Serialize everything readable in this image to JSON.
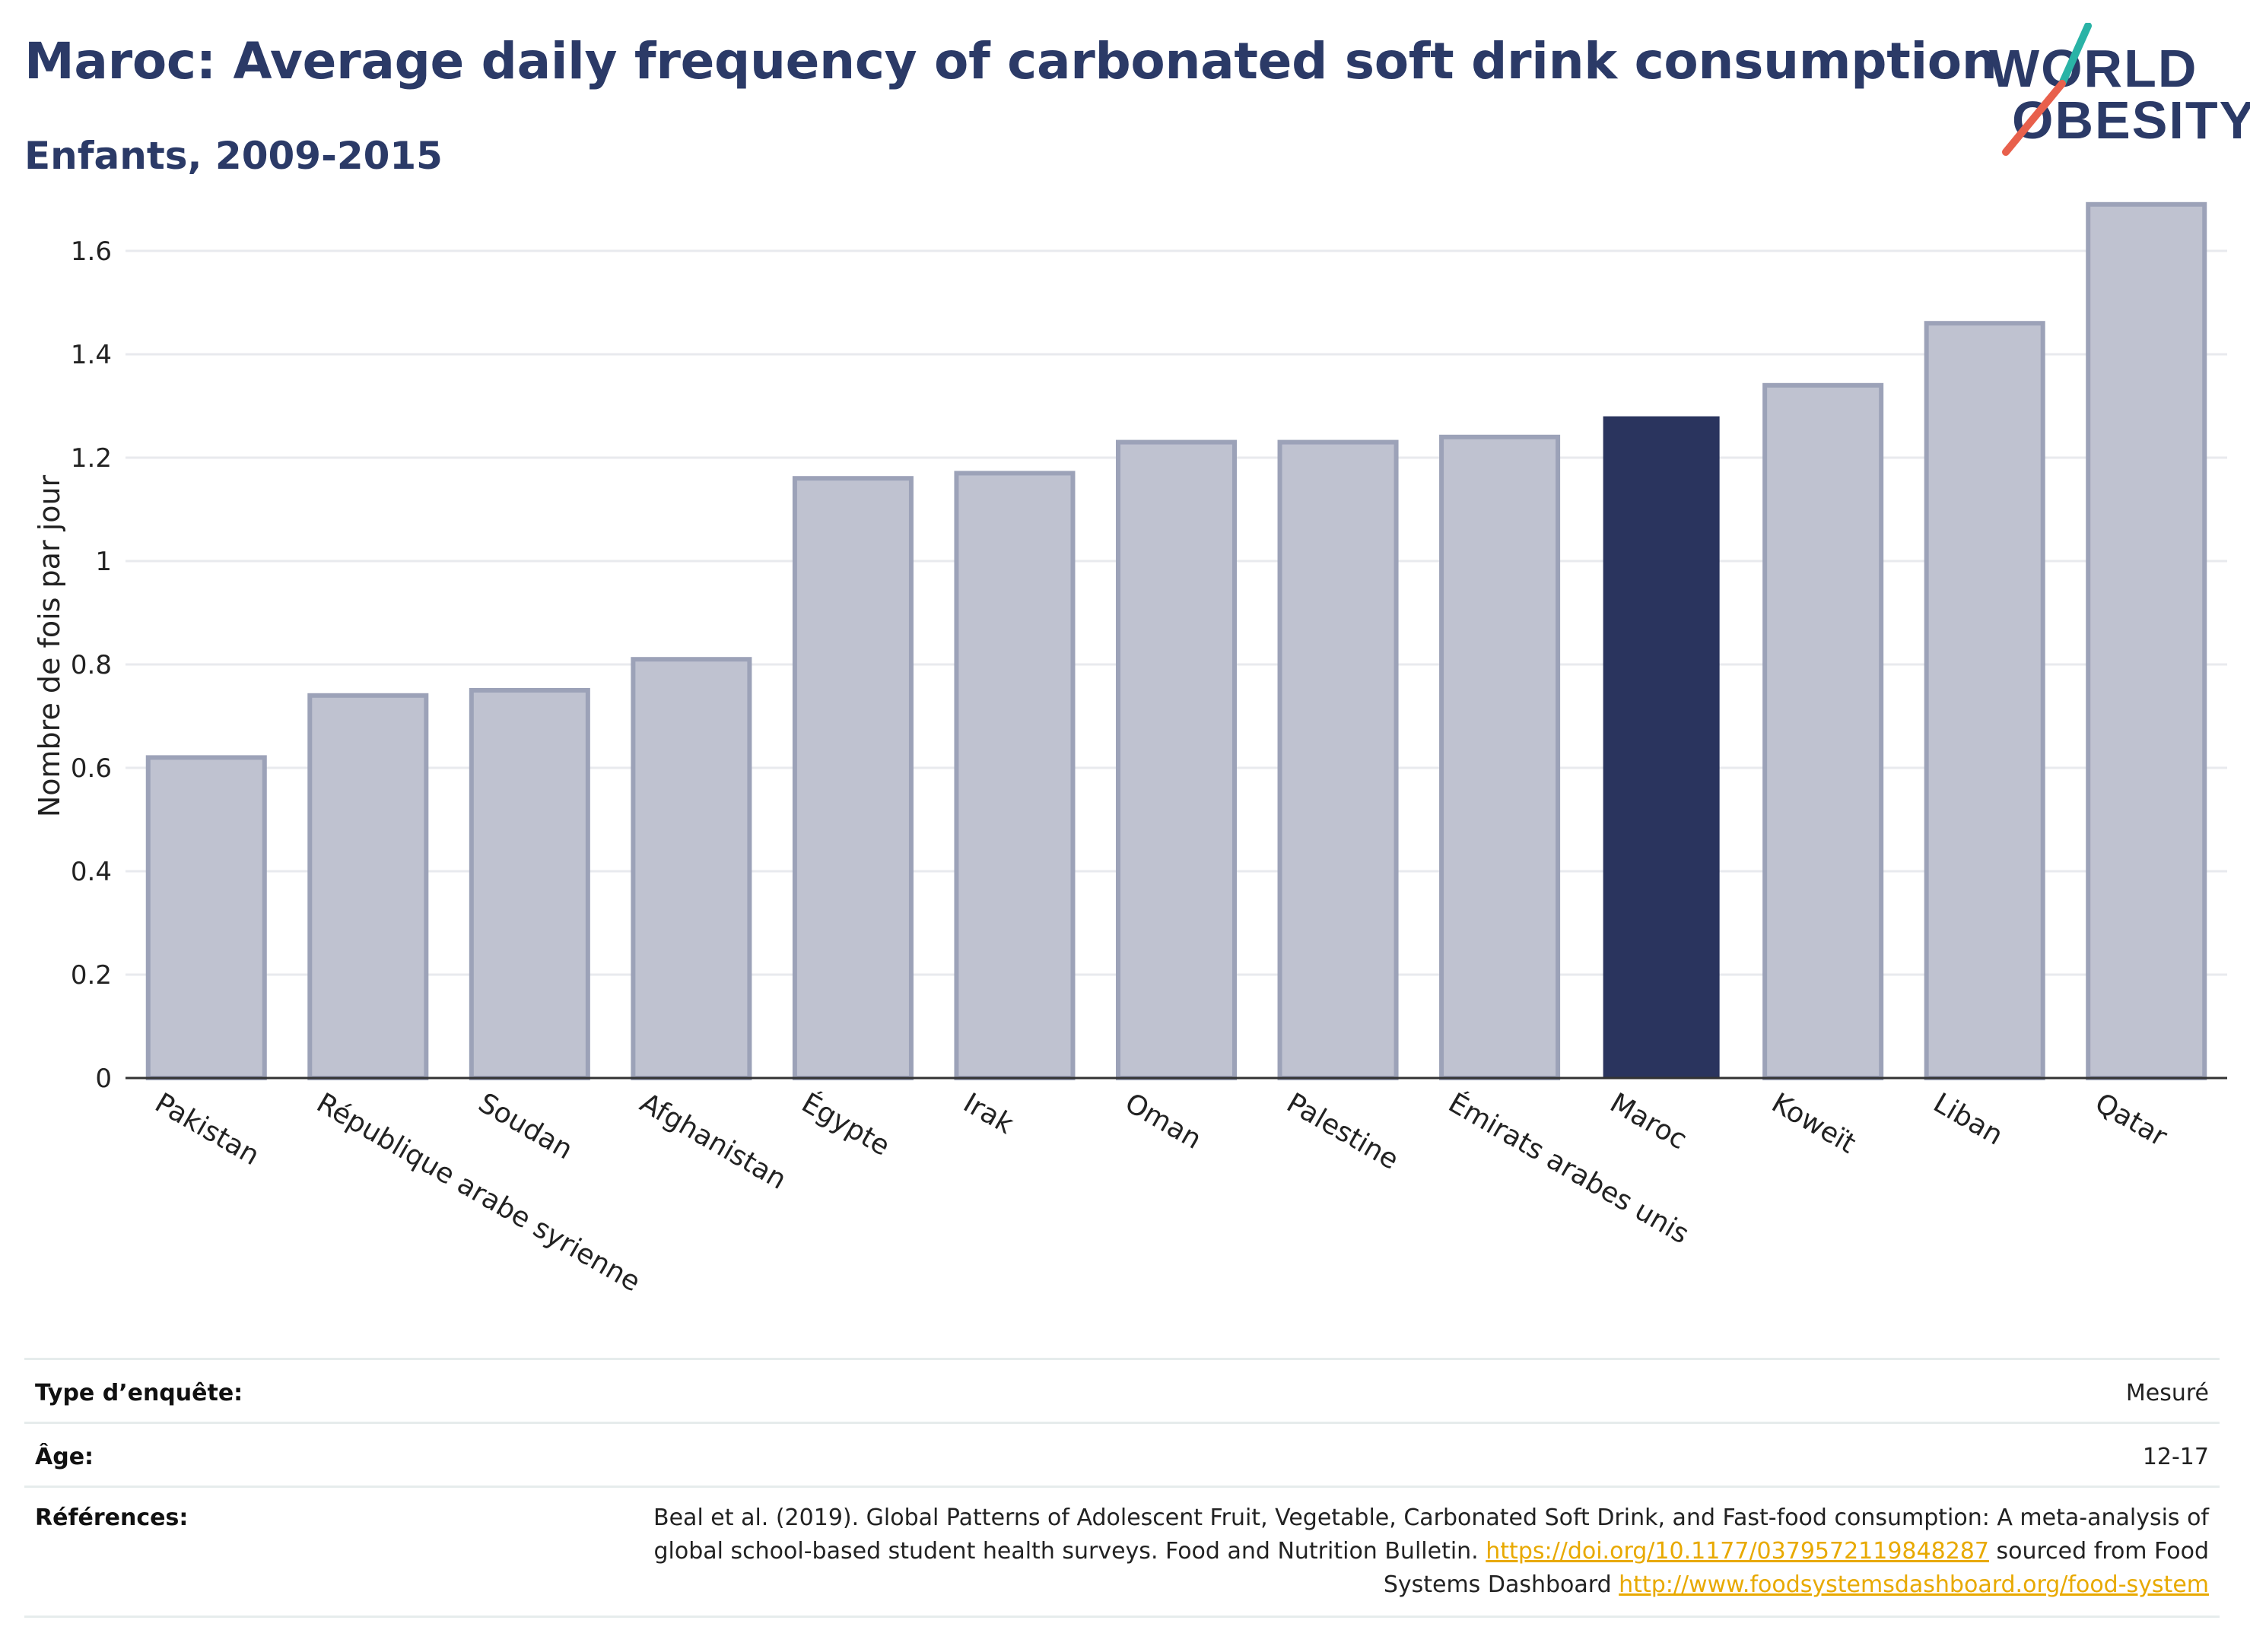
{
  "header": {
    "title": "Maroc: Average daily frequency of carbonated soft drink consumption",
    "subtitle": "Enfants, 2009-2015"
  },
  "logo": {
    "line1": "WORLD",
    "line2": "OBESITY",
    "slash_colors": [
      "#2ab3a6",
      "#e8604c"
    ]
  },
  "chart_data": {
    "type": "bar",
    "title": "Maroc: Average daily frequency of carbonated soft drink consumption",
    "subtitle": "Enfants, 2009-2015",
    "ylabel": "Nombre de fois par jour",
    "xlabel": "",
    "ylim": [
      0,
      1.7
    ],
    "yticks": [
      0,
      0.2,
      0.4,
      0.6,
      0.8,
      1,
      1.2,
      1.4,
      1.6
    ],
    "ytick_labels": [
      "0",
      "0.2",
      "0.4",
      "0.6",
      "0.8",
      "1",
      "1.2",
      "1.4",
      "1.6"
    ],
    "grid": true,
    "categories": [
      "Pakistan",
      "République arabe syrienne",
      "Soudan",
      "Afghanistan",
      "Égypte",
      "Irak",
      "Oman",
      "Palestine",
      "Émirats arabes unis",
      "Maroc",
      "Koweït",
      "Liban",
      "Qatar"
    ],
    "values": [
      0.62,
      0.74,
      0.75,
      0.81,
      1.16,
      1.17,
      1.23,
      1.23,
      1.24,
      1.28,
      1.34,
      1.46,
      1.69
    ],
    "highlight": "Maroc",
    "colors": {
      "bar": "#bfc2d0",
      "bar_border": "#9ca2b8",
      "highlight": "#2a345e",
      "grid": "#e8eaee",
      "axis": "#333333"
    }
  },
  "info": {
    "survey_type_label": "Type d’enquête:",
    "survey_type_value": "Mesuré",
    "age_label": "Âge:",
    "age_value": "12-17",
    "references_label": "Références:",
    "references_text1": "Beal et al. (2019). Global Patterns of Adolescent Fruit, Vegetable, Carbonated Soft Drink, and Fast-food consumption: A meta-analysis of global school-based student health surveys. Food and Nutrition Bulletin.",
    "references_link1": "https://doi.org/10.1177/0379572119848287",
    "references_text2": "sourced from Food Systems Dashboard",
    "references_link2": "http://www.foodsystemsdashboard.org/food-system"
  }
}
